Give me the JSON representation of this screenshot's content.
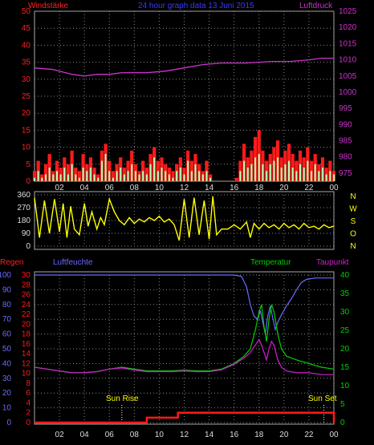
{
  "header": {
    "left_label": "Windstärke",
    "title": "24 hour graph data  13 Juni 2015",
    "right_label": "Luftdruck"
  },
  "colors": {
    "wind": "#ff1a1a",
    "gust": "#b0ffb0",
    "pressure": "#cc33cc",
    "direction": "#ffff00",
    "humidity": "#6a6aff",
    "temperature": "#00d000",
    "dewpoint": "#d020d0",
    "rain": "#ff1a1a",
    "grid": "#888888",
    "axis_text": "#dddddd"
  },
  "chart_data": [
    {
      "type": "bar",
      "name": "wind_pressure",
      "y_left_ticks": [
        0,
        5,
        10,
        15,
        20,
        25,
        30,
        35,
        40,
        45,
        50
      ],
      "y_left_range": [
        0,
        50
      ],
      "y_right_ticks": [
        975,
        980,
        985,
        990,
        995,
        1000,
        1005,
        1010,
        1015,
        1020,
        1025
      ],
      "y_right_range": [
        972.5,
        1025
      ],
      "x_ticks": [
        "02",
        "04",
        "06",
        "08",
        "10",
        "12",
        "14",
        "16",
        "18",
        "20",
        "22",
        "00"
      ],
      "x_range_hours": [
        0,
        24
      ],
      "wind": [
        [
          0.0,
          3
        ],
        [
          0.3,
          6
        ],
        [
          0.6,
          2
        ],
        [
          0.9,
          5
        ],
        [
          1.2,
          8
        ],
        [
          1.5,
          3
        ],
        [
          1.8,
          6
        ],
        [
          2.1,
          4
        ],
        [
          2.4,
          7
        ],
        [
          2.7,
          5
        ],
        [
          3.0,
          9
        ],
        [
          3.3,
          4
        ],
        [
          3.6,
          3
        ],
        [
          3.9,
          8
        ],
        [
          4.2,
          5
        ],
        [
          4.5,
          7
        ],
        [
          4.8,
          4
        ],
        [
          5.1,
          2
        ],
        [
          5.4,
          9
        ],
        [
          5.7,
          11
        ],
        [
          6.0,
          6
        ],
        [
          6.3,
          3
        ],
        [
          6.6,
          5
        ],
        [
          6.9,
          7
        ],
        [
          7.2,
          4
        ],
        [
          7.5,
          6
        ],
        [
          7.8,
          9
        ],
        [
          8.1,
          5
        ],
        [
          8.4,
          3
        ],
        [
          8.7,
          6
        ],
        [
          9.0,
          4
        ],
        [
          9.3,
          8
        ],
        [
          9.6,
          10
        ],
        [
          9.9,
          6
        ],
        [
          10.2,
          7
        ],
        [
          10.5,
          5
        ],
        [
          10.8,
          4
        ],
        [
          11.1,
          3
        ],
        [
          11.4,
          5
        ],
        [
          11.7,
          7
        ],
        [
          12.0,
          4
        ],
        [
          12.3,
          9
        ],
        [
          12.6,
          6
        ],
        [
          12.9,
          8
        ],
        [
          13.2,
          5
        ],
        [
          13.5,
          3
        ],
        [
          13.8,
          6
        ],
        [
          14.1,
          2
        ],
        [
          14.4,
          0
        ],
        [
          15.0,
          0
        ],
        [
          15.6,
          0
        ],
        [
          16.2,
          1
        ],
        [
          16.5,
          6
        ],
        [
          16.8,
          11
        ],
        [
          17.1,
          7
        ],
        [
          17.4,
          9
        ],
        [
          17.7,
          13
        ],
        [
          18.0,
          15
        ],
        [
          18.3,
          9
        ],
        [
          18.6,
          6
        ],
        [
          18.9,
          8
        ],
        [
          19.2,
          10
        ],
        [
          19.5,
          12
        ],
        [
          19.8,
          7
        ],
        [
          20.1,
          9
        ],
        [
          20.4,
          11
        ],
        [
          20.7,
          8
        ],
        [
          21.0,
          6
        ],
        [
          21.3,
          9
        ],
        [
          21.6,
          7
        ],
        [
          21.9,
          10
        ],
        [
          22.2,
          6
        ],
        [
          22.5,
          8
        ],
        [
          22.8,
          5
        ],
        [
          23.1,
          7
        ],
        [
          23.4,
          4
        ],
        [
          23.7,
          6
        ],
        [
          24.0,
          3
        ]
      ],
      "gust": [
        [
          0.0,
          1
        ],
        [
          0.3,
          3
        ],
        [
          0.6,
          1
        ],
        [
          0.9,
          2
        ],
        [
          1.2,
          4
        ],
        [
          1.5,
          2
        ],
        [
          1.8,
          3
        ],
        [
          2.1,
          2
        ],
        [
          2.4,
          4
        ],
        [
          2.7,
          2
        ],
        [
          3.0,
          5
        ],
        [
          3.3,
          2
        ],
        [
          3.6,
          1
        ],
        [
          3.9,
          4
        ],
        [
          4.2,
          3
        ],
        [
          4.5,
          4
        ],
        [
          4.8,
          2
        ],
        [
          5.1,
          1
        ],
        [
          5.4,
          6
        ],
        [
          5.7,
          8
        ],
        [
          6.0,
          3
        ],
        [
          6.3,
          1
        ],
        [
          6.6,
          3
        ],
        [
          6.9,
          4
        ],
        [
          7.2,
          2
        ],
        [
          7.5,
          3
        ],
        [
          7.8,
          5
        ],
        [
          8.1,
          3
        ],
        [
          8.4,
          2
        ],
        [
          8.7,
          3
        ],
        [
          9.0,
          2
        ],
        [
          9.3,
          5
        ],
        [
          9.6,
          7
        ],
        [
          9.9,
          3
        ],
        [
          10.2,
          4
        ],
        [
          10.5,
          3
        ],
        [
          10.8,
          2
        ],
        [
          11.1,
          1
        ],
        [
          11.4,
          3
        ],
        [
          11.7,
          4
        ],
        [
          12.0,
          2
        ],
        [
          12.3,
          6
        ],
        [
          12.6,
          3
        ],
        [
          12.9,
          5
        ],
        [
          13.2,
          3
        ],
        [
          13.5,
          2
        ],
        [
          13.8,
          3
        ],
        [
          14.1,
          1
        ],
        [
          14.4,
          0
        ],
        [
          16.5,
          3
        ],
        [
          16.8,
          6
        ],
        [
          17.1,
          4
        ],
        [
          17.4,
          5
        ],
        [
          17.7,
          7
        ],
        [
          18.0,
          8
        ],
        [
          18.3,
          5
        ],
        [
          18.6,
          3
        ],
        [
          18.9,
          5
        ],
        [
          19.2,
          6
        ],
        [
          19.5,
          7
        ],
        [
          19.8,
          4
        ],
        [
          20.1,
          5
        ],
        [
          20.4,
          6
        ],
        [
          20.7,
          4
        ],
        [
          21.0,
          3
        ],
        [
          21.3,
          5
        ],
        [
          21.6,
          4
        ],
        [
          21.9,
          6
        ],
        [
          22.2,
          3
        ],
        [
          22.5,
          5
        ],
        [
          22.8,
          3
        ],
        [
          23.1,
          4
        ],
        [
          23.4,
          2
        ],
        [
          23.7,
          3
        ],
        [
          24.0,
          2
        ]
      ],
      "pressure": [
        [
          0.0,
          1007.5
        ],
        [
          1.5,
          1007.0
        ],
        [
          2.5,
          1006.0
        ],
        [
          3.0,
          1005.5
        ],
        [
          4.0,
          1005.0
        ],
        [
          5.0,
          1005.5
        ],
        [
          6.0,
          1005.5
        ],
        [
          7.0,
          1006.0
        ],
        [
          9.0,
          1006.0
        ],
        [
          10.5,
          1006.5
        ],
        [
          12.0,
          1007.5
        ],
        [
          13.5,
          1008.5
        ],
        [
          15.0,
          1009.0
        ],
        [
          17.0,
          1009.0
        ],
        [
          19.0,
          1009.5
        ],
        [
          20.5,
          1009.5
        ],
        [
          22.0,
          1010.0
        ],
        [
          23.0,
          1010.5
        ],
        [
          24.0,
          1010.5
        ]
      ]
    },
    {
      "type": "line",
      "name": "wind_direction",
      "y_ticks": [
        0,
        90,
        180,
        270,
        360
      ],
      "y_range": [
        0,
        360
      ],
      "compass_labels": [
        "N",
        "W",
        "S",
        "O",
        "N"
      ],
      "direction": [
        [
          0.0,
          340
        ],
        [
          0.4,
          60
        ],
        [
          0.8,
          320
        ],
        [
          1.2,
          90
        ],
        [
          1.6,
          330
        ],
        [
          2.0,
          100
        ],
        [
          2.3,
          300
        ],
        [
          2.6,
          60
        ],
        [
          2.9,
          280
        ],
        [
          3.2,
          120
        ],
        [
          3.6,
          80
        ],
        [
          4.0,
          300
        ],
        [
          4.3,
          140
        ],
        [
          4.6,
          240
        ],
        [
          5.0,
          120
        ],
        [
          5.3,
          200
        ],
        [
          5.6,
          150
        ],
        [
          6.0,
          330
        ],
        [
          6.4,
          240
        ],
        [
          6.8,
          180
        ],
        [
          7.2,
          150
        ],
        [
          7.6,
          200
        ],
        [
          8.0,
          160
        ],
        [
          8.4,
          190
        ],
        [
          8.8,
          170
        ],
        [
          9.2,
          200
        ],
        [
          9.6,
          180
        ],
        [
          10.0,
          210
        ],
        [
          10.4,
          170
        ],
        [
          10.8,
          190
        ],
        [
          11.2,
          150
        ],
        [
          11.6,
          40
        ],
        [
          12.0,
          330
        ],
        [
          12.4,
          60
        ],
        [
          12.8,
          340
        ],
        [
          13.2,
          80
        ],
        [
          13.6,
          320
        ],
        [
          14.0,
          50
        ],
        [
          14.3,
          350
        ],
        [
          14.6,
          80
        ],
        [
          15.0,
          120
        ],
        [
          15.5,
          120
        ],
        [
          16.0,
          150
        ],
        [
          16.5,
          120
        ],
        [
          17.0,
          170
        ],
        [
          17.3,
          60
        ],
        [
          17.6,
          160
        ],
        [
          18.0,
          120
        ],
        [
          18.4,
          160
        ],
        [
          18.8,
          130
        ],
        [
          19.2,
          150
        ],
        [
          19.6,
          120
        ],
        [
          20.0,
          160
        ],
        [
          20.4,
          130
        ],
        [
          20.8,
          150
        ],
        [
          21.2,
          120
        ],
        [
          21.6,
          160
        ],
        [
          22.0,
          130
        ],
        [
          22.4,
          140
        ],
        [
          22.8,
          120
        ],
        [
          23.2,
          150
        ],
        [
          23.6,
          130
        ],
        [
          24.0,
          140
        ]
      ]
    },
    {
      "type": "line",
      "name": "humidity_temperature",
      "series_labels": {
        "rain": "Regen",
        "humidity": "Luftfeuchte",
        "temperature": "Temperatur",
        "dewpoint": "Taupunkt"
      },
      "y_humidity_ticks": [
        0,
        10,
        20,
        30,
        40,
        50,
        60,
        70,
        80,
        90,
        100
      ],
      "y_rain_ticks": [
        0,
        2,
        4,
        6,
        8,
        10,
        12,
        14,
        16,
        18,
        20,
        22,
        24,
        26,
        28,
        30
      ],
      "y_temp_ticks": [
        0,
        5,
        10,
        15,
        20,
        25,
        30,
        35,
        40
      ],
      "y_temp_range": [
        0,
        40
      ],
      "y_humidity_range": [
        0,
        100
      ],
      "x_ticks": [
        "02",
        "04",
        "06",
        "08",
        "10",
        "12",
        "14",
        "16",
        "18",
        "20",
        "22",
        "00"
      ],
      "annotations": {
        "sun_rise": "Sun Rise",
        "sun_set": "Sun Set"
      },
      "sun_rise_hour": 7.0,
      "sun_set_hour": 23.2,
      "humidity": [
        [
          0.0,
          100
        ],
        [
          16.0,
          100
        ],
        [
          16.6,
          99
        ],
        [
          17.0,
          92
        ],
        [
          17.3,
          80
        ],
        [
          17.6,
          72
        ],
        [
          17.9,
          70
        ],
        [
          18.1,
          76
        ],
        [
          18.3,
          68
        ],
        [
          18.5,
          60
        ],
        [
          18.7,
          72
        ],
        [
          18.9,
          79
        ],
        [
          19.1,
          71
        ],
        [
          19.3,
          63
        ],
        [
          19.5,
          68
        ],
        [
          19.8,
          73
        ],
        [
          20.2,
          79
        ],
        [
          20.6,
          84
        ],
        [
          21.0,
          90
        ],
        [
          21.4,
          95
        ],
        [
          21.8,
          97
        ],
        [
          22.5,
          98
        ],
        [
          23.5,
          98
        ],
        [
          24.0,
          98
        ]
      ],
      "temperature": [
        [
          0.0,
          15
        ],
        [
          1.0,
          14.5
        ],
        [
          2.0,
          14
        ],
        [
          3.0,
          13.5
        ],
        [
          4.0,
          13.5
        ],
        [
          5.0,
          13.8
        ],
        [
          6.0,
          14.5
        ],
        [
          7.0,
          15
        ],
        [
          8.0,
          14.5
        ],
        [
          9.0,
          14
        ],
        [
          10.0,
          14
        ],
        [
          11.0,
          14
        ],
        [
          12.0,
          14.2
        ],
        [
          13.0,
          14
        ],
        [
          14.0,
          14
        ],
        [
          15.0,
          14.5
        ],
        [
          16.0,
          16
        ],
        [
          16.8,
          18
        ],
        [
          17.3,
          20
        ],
        [
          17.7,
          25
        ],
        [
          18.0,
          30
        ],
        [
          18.2,
          32
        ],
        [
          18.4,
          26
        ],
        [
          18.6,
          22
        ],
        [
          18.8,
          28
        ],
        [
          19.0,
          32
        ],
        [
          19.2,
          30
        ],
        [
          19.5,
          24
        ],
        [
          19.8,
          20
        ],
        [
          20.2,
          18
        ],
        [
          21.0,
          17
        ],
        [
          22.0,
          16
        ],
        [
          23.0,
          15
        ],
        [
          24.0,
          14.5
        ]
      ],
      "dewpoint": [
        [
          0.0,
          15
        ],
        [
          1.0,
          14.5
        ],
        [
          2.0,
          14
        ],
        [
          3.0,
          13.5
        ],
        [
          4.0,
          13.5
        ],
        [
          5.0,
          13.8
        ],
        [
          6.0,
          14.5
        ],
        [
          7.0,
          14.8
        ],
        [
          8.0,
          14.2
        ],
        [
          9.0,
          13.8
        ],
        [
          10.0,
          13.8
        ],
        [
          11.0,
          13.8
        ],
        [
          12.0,
          14
        ],
        [
          13.0,
          13.8
        ],
        [
          14.0,
          13.8
        ],
        [
          15.0,
          14.3
        ],
        [
          16.0,
          15.8
        ],
        [
          16.8,
          17.5
        ],
        [
          17.3,
          19
        ],
        [
          17.7,
          21
        ],
        [
          18.0,
          22.5
        ],
        [
          18.2,
          21
        ],
        [
          18.4,
          19
        ],
        [
          18.6,
          17
        ],
        [
          18.8,
          20
        ],
        [
          19.0,
          22
        ],
        [
          19.2,
          21
        ],
        [
          19.5,
          17
        ],
        [
          19.8,
          15
        ],
        [
          20.2,
          14
        ],
        [
          21.0,
          13.5
        ],
        [
          22.0,
          13.5
        ],
        [
          23.0,
          13
        ],
        [
          24.0,
          13
        ]
      ],
      "rain": [
        [
          0.0,
          0
        ],
        [
          9.0,
          0
        ],
        [
          9.0,
          1
        ],
        [
          11.5,
          1
        ],
        [
          11.5,
          2
        ],
        [
          24.0,
          2
        ],
        [
          24.0,
          0
        ]
      ]
    }
  ]
}
